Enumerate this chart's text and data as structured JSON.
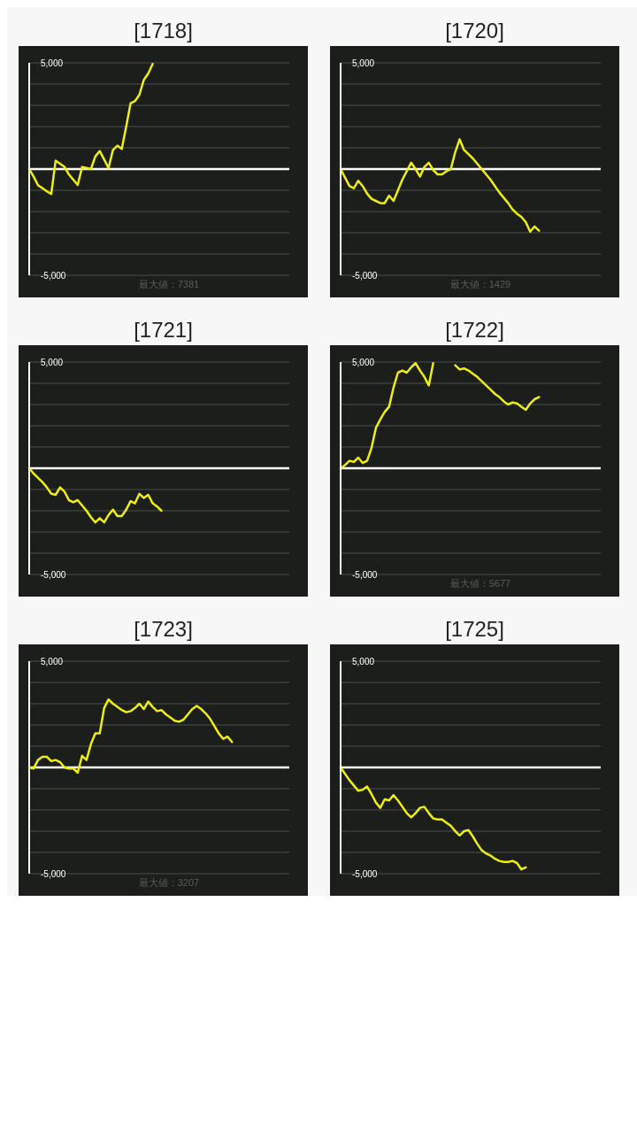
{
  "chart_data": [
    {
      "type": "line",
      "title": "[1718]",
      "categories": [
        null,
        null,
        null,
        null,
        null,
        null,
        null,
        null,
        null,
        null,
        null,
        null,
        null,
        null,
        null,
        null,
        null,
        null,
        null,
        null,
        null,
        null,
        null,
        null,
        null,
        null,
        null,
        null,
        null,
        null,
        null,
        null,
        null,
        null,
        null,
        null,
        null,
        null,
        null,
        null,
        null,
        null,
        null,
        null,
        null,
        null,
        null,
        null,
        null,
        null,
        null,
        null,
        null,
        null,
        null,
        null,
        null,
        null,
        null,
        null
      ],
      "values": [
        0,
        -350,
        -760,
        -900,
        -1050,
        -1170,
        400,
        250,
        100,
        -250,
        -500,
        -750,
        100,
        50,
        0,
        600,
        850,
        450,
        50,
        900,
        1100,
        950,
        2000,
        3100,
        3200,
        3500,
        4200,
        4500,
        4950,
        null,
        null,
        null,
        null,
        null,
        null,
        null,
        null,
        null,
        null,
        null,
        null,
        null,
        null,
        null,
        null,
        null,
        null,
        null,
        null,
        null,
        null,
        null,
        null,
        null,
        null,
        null,
        null,
        null,
        null,
        null
      ],
      "color": "#eeee10",
      "ylim": [
        -5000,
        5000
      ],
      "yticks": [
        {
          "value": -5000,
          "label": "-5,000"
        },
        {
          "value": -4000,
          "label": null
        },
        {
          "value": -3000,
          "label": null
        },
        {
          "value": -2000,
          "label": null
        },
        {
          "value": -1000,
          "label": null
        },
        {
          "value": 0,
          "label": null
        },
        {
          "value": 1000,
          "label": null
        },
        {
          "value": 2000,
          "label": null
        },
        {
          "value": 3000,
          "label": null
        },
        {
          "value": 4000,
          "label": null
        },
        {
          "value": 5000,
          "label": "5,000"
        }
      ],
      "grid": "y",
      "tick_labels": "y",
      "marker": "none",
      "line_style": "solid",
      "ref_lines": [
        {
          "axis": "y",
          "value": 0,
          "label": null,
          "color": "#ffffff"
        }
      ],
      "annotations": [
        "最大値：7381"
      ]
    },
    {
      "type": "line",
      "title": "[1720]",
      "categories": [
        null,
        null,
        null,
        null,
        null,
        null,
        null,
        null,
        null,
        null,
        null,
        null,
        null,
        null,
        null,
        null,
        null,
        null,
        null,
        null,
        null,
        null,
        null,
        null,
        null,
        null,
        null,
        null,
        null,
        null,
        null,
        null,
        null,
        null,
        null,
        null,
        null,
        null,
        null,
        null,
        null,
        null,
        null,
        null,
        null,
        null,
        null,
        null,
        null,
        null,
        null,
        null,
        null,
        null,
        null,
        null,
        null,
        null,
        null,
        null
      ],
      "values": [
        0,
        -400,
        -800,
        -900,
        -550,
        -800,
        -1150,
        -1400,
        -1500,
        -1600,
        -1600,
        -1250,
        -1500,
        -1000,
        -500,
        -100,
        300,
        0,
        -350,
        100,
        300,
        -50,
        -250,
        -250,
        -100,
        0,
        800,
        1400,
        900,
        700,
        500,
        250,
        0,
        -250,
        -500,
        -800,
        -1100,
        -1350,
        -1600,
        -1900,
        -2100,
        -2250,
        -2500,
        -2950,
        -2700,
        -2900,
        null,
        null,
        null,
        null,
        null,
        null,
        null,
        null,
        null,
        null,
        null,
        null,
        null,
        null
      ],
      "color": "#eeee10",
      "ylim": [
        -5000,
        5000
      ],
      "yticks": [
        {
          "value": -5000,
          "label": "-5,000"
        },
        {
          "value": -4000,
          "label": null
        },
        {
          "value": -3000,
          "label": null
        },
        {
          "value": -2000,
          "label": null
        },
        {
          "value": -1000,
          "label": null
        },
        {
          "value": 0,
          "label": null
        },
        {
          "value": 1000,
          "label": null
        },
        {
          "value": 2000,
          "label": null
        },
        {
          "value": 3000,
          "label": null
        },
        {
          "value": 4000,
          "label": null
        },
        {
          "value": 5000,
          "label": "5,000"
        }
      ],
      "grid": "y",
      "tick_labels": "y",
      "marker": "none",
      "line_style": "solid",
      "ref_lines": [
        {
          "axis": "y",
          "value": 0,
          "label": null,
          "color": "#ffffff"
        }
      ],
      "annotations": [
        "最大値：1429"
      ]
    },
    {
      "type": "line",
      "title": "[1721]",
      "categories": [
        null,
        null,
        null,
        null,
        null,
        null,
        null,
        null,
        null,
        null,
        null,
        null,
        null,
        null,
        null,
        null,
        null,
        null,
        null,
        null,
        null,
        null,
        null,
        null,
        null,
        null,
        null,
        null,
        null,
        null,
        null,
        null,
        null,
        null,
        null,
        null,
        null,
        null,
        null,
        null,
        null,
        null,
        null,
        null,
        null,
        null,
        null,
        null,
        null,
        null,
        null,
        null,
        null,
        null,
        null,
        null,
        null,
        null,
        null,
        null
      ],
      "values": [
        0,
        -250,
        -450,
        -650,
        -900,
        -1200,
        -1250,
        -900,
        -1100,
        -1500,
        -1600,
        -1500,
        -1750,
        -2000,
        -2300,
        -2550,
        -2350,
        -2550,
        -2200,
        -1950,
        -2250,
        -2250,
        -1950,
        -1550,
        -1650,
        -1200,
        -1400,
        -1250,
        -1650,
        -1800,
        -2000,
        null,
        null,
        null,
        null,
        null,
        null,
        null,
        null,
        null,
        null,
        null,
        null,
        null,
        null,
        null,
        null,
        null,
        null,
        null,
        null,
        null,
        null,
        null,
        null,
        null,
        null,
        null,
        null,
        null
      ],
      "color": "#eeee10",
      "ylim": [
        -5000,
        5000
      ],
      "yticks": [
        {
          "value": -5000,
          "label": "-5,000"
        },
        {
          "value": -4000,
          "label": null
        },
        {
          "value": -3000,
          "label": null
        },
        {
          "value": -2000,
          "label": null
        },
        {
          "value": -1000,
          "label": null
        },
        {
          "value": 0,
          "label": null
        },
        {
          "value": 1000,
          "label": null
        },
        {
          "value": 2000,
          "label": null
        },
        {
          "value": 3000,
          "label": null
        },
        {
          "value": 4000,
          "label": null
        },
        {
          "value": 5000,
          "label": "5,000"
        }
      ],
      "grid": "y",
      "tick_labels": "y",
      "marker": "none",
      "line_style": "solid",
      "ref_lines": [
        {
          "axis": "y",
          "value": 0,
          "label": null,
          "color": "#ffffff"
        }
      ]
    },
    {
      "type": "line",
      "title": "[1722]",
      "categories": [
        null,
        null,
        null,
        null,
        null,
        null,
        null,
        null,
        null,
        null,
        null,
        null,
        null,
        null,
        null,
        null,
        null,
        null,
        null,
        null,
        null,
        null,
        null,
        null,
        null,
        null,
        null,
        null,
        null,
        null,
        null,
        null,
        null,
        null,
        null,
        null,
        null,
        null,
        null,
        null,
        null,
        null,
        null,
        null,
        null,
        null,
        null,
        null,
        null,
        null,
        null,
        null,
        null,
        null,
        null,
        null,
        null,
        null,
        null,
        null
      ],
      "values": [
        0,
        150,
        350,
        300,
        500,
        250,
        350,
        950,
        1900,
        2300,
        2650,
        2900,
        3800,
        4500,
        4600,
        4500,
        4750,
        4950,
        4600,
        4300,
        3900,
        4950,
        null,
        null,
        null,
        null,
        4850,
        4650,
        4700,
        4600,
        4450,
        4300,
        4100,
        3900,
        3700,
        3500,
        3350,
        3150,
        3000,
        3100,
        3050,
        2900,
        2750,
        3050,
        3250,
        3350,
        null,
        null,
        null,
        null,
        null,
        null,
        null,
        null,
        null,
        null,
        null,
        null,
        null,
        null
      ],
      "color": "#eeee10",
      "ylim": [
        -5000,
        5000
      ],
      "yticks": [
        {
          "value": -5000,
          "label": "-5,000"
        },
        {
          "value": -4000,
          "label": null
        },
        {
          "value": -3000,
          "label": null
        },
        {
          "value": -2000,
          "label": null
        },
        {
          "value": -1000,
          "label": null
        },
        {
          "value": 0,
          "label": null
        },
        {
          "value": 1000,
          "label": null
        },
        {
          "value": 2000,
          "label": null
        },
        {
          "value": 3000,
          "label": null
        },
        {
          "value": 4000,
          "label": null
        },
        {
          "value": 5000,
          "label": "5,000"
        }
      ],
      "grid": "y",
      "tick_labels": "y",
      "marker": "none",
      "line_style": "solid",
      "ref_lines": [
        {
          "axis": "y",
          "value": 0,
          "label": null,
          "color": "#ffffff"
        }
      ],
      "annotations": [
        "最大値：5677"
      ]
    },
    {
      "type": "line",
      "title": "[1723]",
      "categories": [
        null,
        null,
        null,
        null,
        null,
        null,
        null,
        null,
        null,
        null,
        null,
        null,
        null,
        null,
        null,
        null,
        null,
        null,
        null,
        null,
        null,
        null,
        null,
        null,
        null,
        null,
        null,
        null,
        null,
        null,
        null,
        null,
        null,
        null,
        null,
        null,
        null,
        null,
        null,
        null,
        null,
        null,
        null,
        null,
        null,
        null,
        null,
        null,
        null,
        null,
        null,
        null,
        null,
        null,
        null,
        null,
        null,
        null,
        null,
        null
      ],
      "values": [
        0,
        -50,
        350,
        500,
        500,
        300,
        350,
        250,
        0,
        -50,
        -50,
        -250,
        550,
        350,
        1100,
        1600,
        1600,
        2800,
        3200,
        3000,
        2850,
        2700,
        2600,
        2650,
        2800,
        3000,
        2750,
        3100,
        2850,
        2650,
        2700,
        2500,
        2350,
        2200,
        2150,
        2250,
        2500,
        2750,
        2900,
        2750,
        2550,
        2300,
        1950,
        1600,
        1350,
        1450,
        1200,
        null,
        null,
        null,
        null,
        null,
        null,
        null,
        null,
        null,
        null,
        null,
        null,
        null
      ],
      "color": "#eeee10",
      "ylim": [
        -5000,
        5000
      ],
      "yticks": [
        {
          "value": -5000,
          "label": "-5,000"
        },
        {
          "value": -4000,
          "label": null
        },
        {
          "value": -3000,
          "label": null
        },
        {
          "value": -2000,
          "label": null
        },
        {
          "value": -1000,
          "label": null
        },
        {
          "value": 0,
          "label": null
        },
        {
          "value": 1000,
          "label": null
        },
        {
          "value": 2000,
          "label": null
        },
        {
          "value": 3000,
          "label": null
        },
        {
          "value": 4000,
          "label": null
        },
        {
          "value": 5000,
          "label": "5,000"
        }
      ],
      "grid": "y",
      "tick_labels": "y",
      "marker": "none",
      "line_style": "solid",
      "ref_lines": [
        {
          "axis": "y",
          "value": 0,
          "label": null,
          "color": "#ffffff"
        }
      ],
      "annotations": [
        "最大値：3207"
      ]
    },
    {
      "type": "line",
      "title": "[1725]",
      "categories": [
        null,
        null,
        null,
        null,
        null,
        null,
        null,
        null,
        null,
        null,
        null,
        null,
        null,
        null,
        null,
        null,
        null,
        null,
        null,
        null,
        null,
        null,
        null,
        null,
        null,
        null,
        null,
        null,
        null,
        null,
        null,
        null,
        null,
        null,
        null,
        null,
        null,
        null,
        null,
        null,
        null,
        null,
        null,
        null,
        null,
        null,
        null,
        null,
        null,
        null,
        null,
        null,
        null,
        null,
        null,
        null,
        null,
        null,
        null,
        null
      ],
      "values": [
        0,
        -300,
        -600,
        -850,
        -1100,
        -1050,
        -900,
        -1250,
        -1650,
        -1900,
        -1500,
        -1550,
        -1300,
        -1550,
        -1850,
        -2150,
        -2350,
        -2150,
        -1900,
        -1850,
        -2150,
        -2400,
        -2450,
        -2450,
        -2600,
        -2750,
        -3000,
        -3200,
        -3000,
        -2950,
        -3250,
        -3600,
        -3900,
        -4050,
        -4150,
        -4300,
        -4400,
        -4450,
        -4450,
        -4400,
        -4500,
        -4800,
        -4700,
        null,
        null,
        null,
        null,
        null,
        null,
        null,
        null,
        null,
        null,
        null,
        null,
        null,
        null,
        null,
        null,
        null
      ],
      "color": "#eeee10",
      "ylim": [
        -5000,
        5000
      ],
      "yticks": [
        {
          "value": -5000,
          "label": "-5,000"
        },
        {
          "value": -4000,
          "label": null
        },
        {
          "value": -3000,
          "label": null
        },
        {
          "value": -2000,
          "label": null
        },
        {
          "value": -1000,
          "label": null
        },
        {
          "value": 0,
          "label": null
        },
        {
          "value": 1000,
          "label": null
        },
        {
          "value": 2000,
          "label": null
        },
        {
          "value": 3000,
          "label": null
        },
        {
          "value": 4000,
          "label": null
        },
        {
          "value": 5000,
          "label": "5,000"
        }
      ],
      "grid": "y",
      "tick_labels": "y",
      "marker": "none",
      "line_style": "solid",
      "ref_lines": [
        {
          "axis": "y",
          "value": 0,
          "label": null,
          "color": "#ffffff"
        }
      ]
    }
  ]
}
